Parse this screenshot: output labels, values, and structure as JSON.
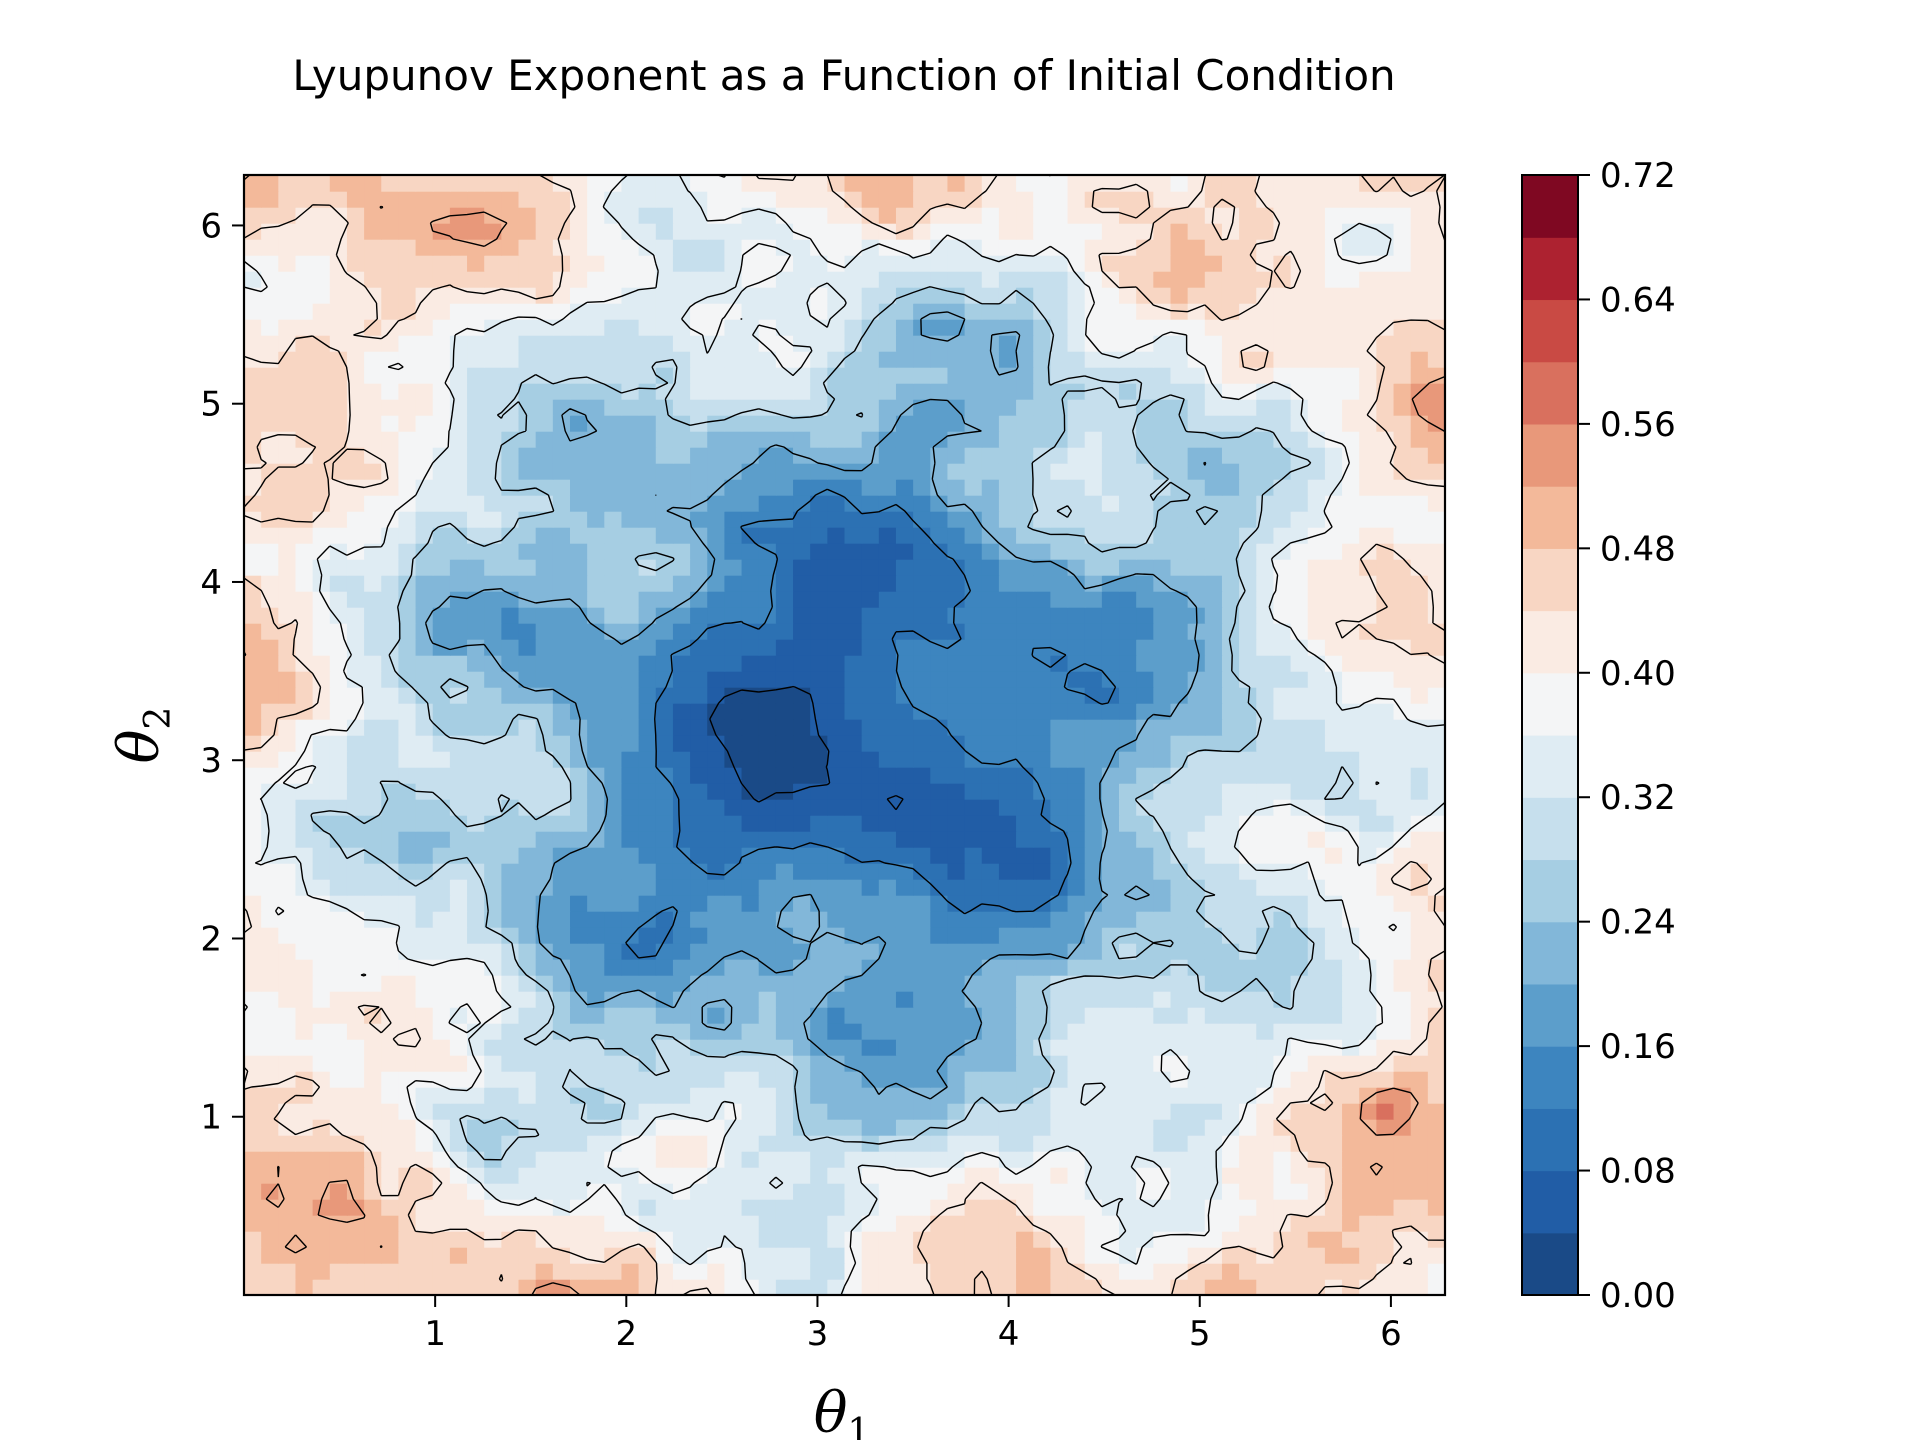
{
  "chart_data": {
    "type": "heatmap",
    "subtype": "filled-contour",
    "title": "Lyupunov Exponent as a Function of Initial Condition",
    "xlabel": {
      "symbol": "θ",
      "subscript": "1"
    },
    "ylabel": {
      "symbol": "θ",
      "subscript": "2"
    },
    "xlim": [
      0.0,
      6.283
    ],
    "ylim": [
      0.0,
      6.283
    ],
    "xticks": [
      1,
      2,
      3,
      4,
      5,
      6
    ],
    "yticks": [
      1,
      2,
      3,
      4,
      5,
      6
    ],
    "grid": false,
    "colormap": "RdBu_r",
    "colorbar": {
      "min": 0.0,
      "max": 0.72,
      "levels": 18,
      "tick_values": [
        0.0,
        0.08,
        0.16,
        0.24,
        0.32,
        0.4,
        0.48,
        0.56,
        0.64,
        0.72
      ],
      "tick_labels": [
        "0.00",
        "0.08",
        "0.16",
        "0.24",
        "0.32",
        "0.40",
        "0.48",
        "0.56",
        "0.64",
        "0.72"
      ],
      "colors": [
        "#1a4a87",
        "#215da6",
        "#2c71b3",
        "#3d85bf",
        "#5c9ecb",
        "#82b7d9",
        "#a6cee3",
        "#c6dfed",
        "#dfecf3",
        "#f4f5f6",
        "#faebe3",
        "#f8d6c3",
        "#f3b99a",
        "#e8987a",
        "#d9705e",
        "#c94a44",
        "#ad2230",
        "#7f0822"
      ]
    },
    "description_values": {
      "center_region_value_range": [
        0.04,
        0.16
      ],
      "corner_region_value_range": [
        0.4,
        0.64
      ],
      "pattern": "low values (blue) in the central region around (3.14, 3.14); high values (red) toward the four corners"
    }
  }
}
